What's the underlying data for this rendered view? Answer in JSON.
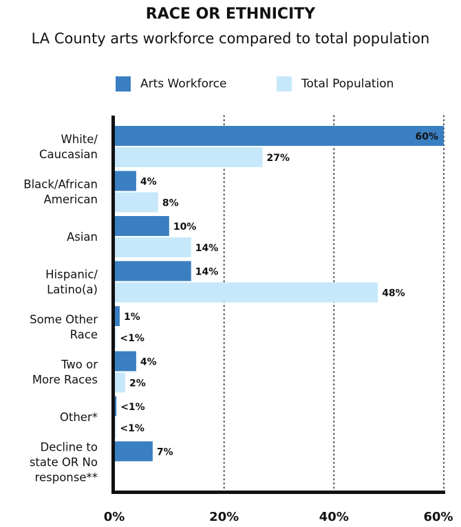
{
  "chart_data": {
    "type": "bar",
    "orientation": "horizontal",
    "title": "RACE OR ETHNICITY",
    "subtitle": "LA County arts workforce compared to total population",
    "categories": [
      [
        "White/",
        "Caucasian"
      ],
      [
        "Black/African",
        "American"
      ],
      [
        "Asian"
      ],
      [
        "Hispanic/",
        "Latino(a)"
      ],
      [
        "Some Other",
        "Race"
      ],
      [
        "Two or",
        "More Races"
      ],
      [
        "Other*"
      ],
      [
        "Decline to",
        "state OR No",
        "response**"
      ]
    ],
    "series": [
      {
        "name": "Arts Workforce",
        "color": "#3A7FC1",
        "values": [
          60,
          4,
          10,
          14,
          1,
          4,
          0.4,
          7
        ],
        "labels": [
          "60%",
          "4%",
          "10%",
          "14%",
          "1%",
          "4%",
          "<1%",
          "7%"
        ]
      },
      {
        "name": "Total Population",
        "color": "#C6E8FA",
        "values": [
          27,
          8,
          14,
          48,
          0.3,
          2,
          0.3,
          null
        ],
        "labels": [
          "27%",
          "8%",
          "14%",
          "48%",
          "<1%",
          "2%",
          "<1%",
          ""
        ]
      }
    ],
    "xlim": [
      0,
      60
    ],
    "xticks": [
      0,
      20,
      40,
      60
    ],
    "xtick_labels": [
      "0%",
      "20%",
      "40%",
      "60%"
    ],
    "grid": "vertical dotted",
    "legend_position": "top"
  }
}
